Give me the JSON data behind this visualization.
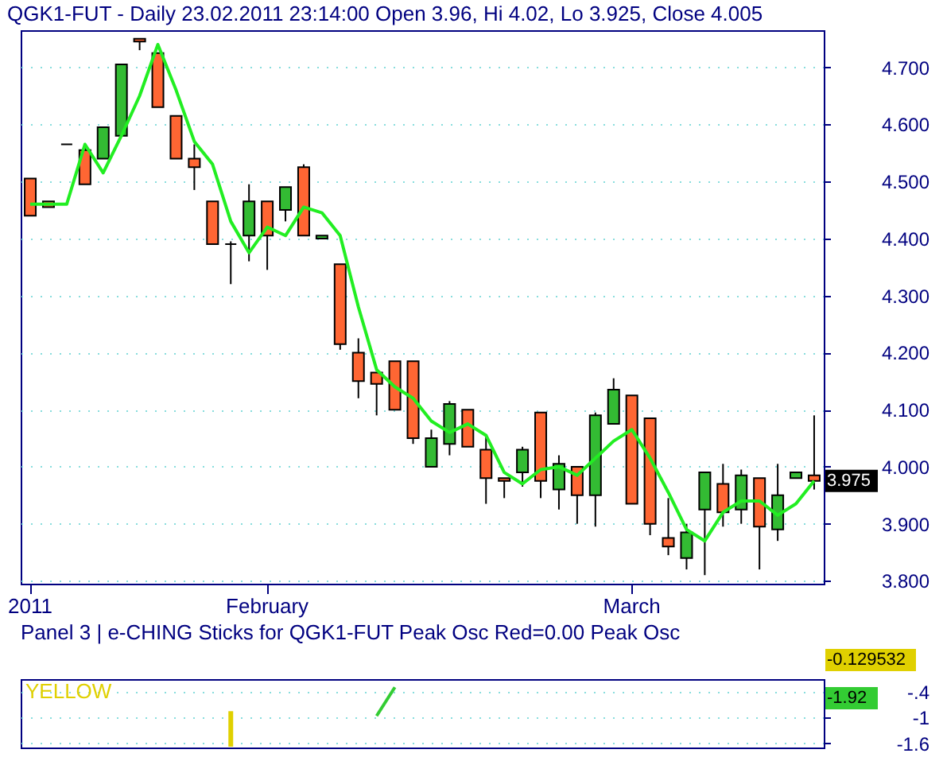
{
  "chart_data": [
    {
      "type": "candlestick",
      "title": "QGK1-FUT - Daily 23.02.2011 23:14:00 Open 3.96, Hi 4.02, Lo 3.925, Close 4.005",
      "categories": [
        "2011",
        null,
        null,
        null,
        null,
        null,
        null,
        null,
        null,
        null,
        null,
        null,
        null,
        "February",
        null,
        null,
        null,
        null,
        null,
        null,
        null,
        null,
        null,
        null,
        null,
        null,
        null,
        null,
        null,
        null,
        null,
        null,
        null,
        "March",
        null,
        null,
        null,
        null,
        null,
        null,
        null,
        null,
        null,
        null
      ],
      "ohlc": [
        [
          4.505,
          4.505,
          4.44,
          4.44
        ],
        [
          4.465,
          4.465,
          4.455,
          4.455
        ],
        [
          4.565,
          4.565,
          4.565,
          4.565
        ],
        [
          4.555,
          4.565,
          4.495,
          4.495
        ],
        [
          4.54,
          4.595,
          4.54,
          4.595
        ],
        [
          4.58,
          4.705,
          4.58,
          4.705
        ],
        [
          4.75,
          4.75,
          4.73,
          4.745
        ],
        [
          4.725,
          4.725,
          4.63,
          4.63
        ],
        [
          4.615,
          4.615,
          4.54,
          4.54
        ],
        [
          4.54,
          4.565,
          4.485,
          4.525
        ],
        [
          4.465,
          4.465,
          4.39,
          4.39
        ],
        [
          4.39,
          4.395,
          4.32,
          4.39
        ],
        [
          4.405,
          4.495,
          4.36,
          4.465
        ],
        [
          4.465,
          4.465,
          4.345,
          4.405
        ],
        [
          4.45,
          4.49,
          4.43,
          4.49
        ],
        [
          4.525,
          4.53,
          4.405,
          4.405
        ],
        [
          4.4,
          4.405,
          4.4,
          4.405
        ],
        [
          4.355,
          4.355,
          4.205,
          4.215
        ],
        [
          4.2,
          4.225,
          4.12,
          4.15
        ],
        [
          4.165,
          4.165,
          4.09,
          4.145
        ],
        [
          4.185,
          4.185,
          4.1,
          4.1
        ],
        [
          4.185,
          4.185,
          4.04,
          4.05
        ],
        [
          4.0,
          4.065,
          4.0,
          4.05
        ],
        [
          4.04,
          4.115,
          4.02,
          4.11
        ],
        [
          4.1,
          4.1,
          4.035,
          4.035
        ],
        [
          4.03,
          4.055,
          3.935,
          3.98
        ],
        [
          3.98,
          3.98,
          3.945,
          3.975
        ],
        [
          3.99,
          4.035,
          3.965,
          4.03
        ],
        [
          4.095,
          4.095,
          3.945,
          3.975
        ],
        [
          3.96,
          4.02,
          3.925,
          4.005
        ],
        [
          4.0,
          4.0,
          3.9,
          3.95
        ],
        [
          3.95,
          4.095,
          3.895,
          4.09
        ],
        [
          4.075,
          4.155,
          4.075,
          4.135
        ],
        [
          4.125,
          4.125,
          3.935,
          3.935
        ],
        [
          4.085,
          4.085,
          3.88,
          3.9
        ],
        [
          3.875,
          3.945,
          3.845,
          3.86
        ],
        [
          3.84,
          3.9,
          3.82,
          3.885
        ],
        [
          3.925,
          3.99,
          3.81,
          3.99
        ],
        [
          3.97,
          4.005,
          3.895,
          3.92
        ],
        [
          3.925,
          3.995,
          3.9,
          3.985
        ],
        [
          3.98,
          3.98,
          3.82,
          3.895
        ],
        [
          3.89,
          4.005,
          3.87,
          3.95
        ],
        [
          3.98,
          3.99,
          3.98,
          3.99
        ],
        [
          3.985,
          4.09,
          3.96,
          3.975
        ]
      ],
      "colors": [
        "#ff6633",
        "#ff6633",
        "#000000",
        "#ff6633",
        "#33bb33",
        "#33bb33",
        "#ff6633",
        "#ff6633",
        "#ff6633",
        "#ff6633",
        "#ff6633",
        "#000000",
        "#33bb33",
        "#ff6633",
        "#33bb33",
        "#ff6633",
        "#33bb33",
        "#ff6633",
        "#ff6633",
        "#ff6633",
        "#ff6633",
        "#ff6633",
        "#33bb33",
        "#33bb33",
        "#ff6633",
        "#ff6633",
        "#ff6633",
        "#33bb33",
        "#ff6633",
        "#33bb33",
        "#ff6633",
        "#33bb33",
        "#33bb33",
        "#ff6633",
        "#ff6633",
        "#ff6633",
        "#33bb33",
        "#33bb33",
        "#ff6633",
        "#33bb33",
        "#ff6633",
        "#33bb33",
        "#33bb33",
        "#ff6633"
      ],
      "series": [
        {
          "type": "line",
          "color": "#22ee22",
          "values": [
            4.46,
            4.46,
            4.46,
            4.565,
            4.515,
            4.58,
            4.65,
            4.74,
            4.66,
            4.57,
            4.53,
            4.43,
            4.375,
            4.42,
            4.405,
            4.455,
            4.445,
            4.405,
            4.28,
            4.17,
            4.14,
            4.12,
            4.08,
            4.06,
            4.075,
            4.055,
            3.99,
            3.97,
            3.995,
            4.0,
            3.985,
            4.015,
            4.045,
            4.065,
            4.015,
            3.955,
            3.89,
            3.87,
            3.92,
            3.94,
            3.94,
            3.915,
            3.935,
            3.975
          ]
        }
      ],
      "ylim": [
        3.795,
        4.765
      ],
      "yticks": [
        {
          "value": 3.8,
          "label": "3.800"
        },
        {
          "value": 3.9,
          "label": "3.900"
        },
        {
          "value": 4.0,
          "label": "4.000"
        },
        {
          "value": 4.1,
          "label": "4.100"
        },
        {
          "value": 4.2,
          "label": "4.200"
        },
        {
          "value": 4.3,
          "label": "4.300"
        },
        {
          "value": 4.4,
          "label": "4.400"
        },
        {
          "value": 4.5,
          "label": "4.500"
        },
        {
          "value": 4.6,
          "label": "4.600"
        },
        {
          "value": 4.7,
          "label": "4.700"
        }
      ],
      "grid": "y",
      "annotations": [
        "3.975"
      ]
    },
    {
      "type": "bar",
      "title": "Panel 3 |  e-CHING Sticks for QGK1-FUT   Peak Osc Red=0.00   Peak Osc",
      "categories": [
        null,
        null,
        null,
        null,
        null,
        null,
        null,
        null,
        null,
        null,
        null,
        null,
        null,
        null,
        null,
        null,
        null,
        null,
        null,
        null,
        null,
        null,
        null,
        null,
        null,
        null,
        null,
        null,
        null,
        null,
        null,
        null,
        null,
        null,
        null,
        null,
        null,
        null,
        null,
        null,
        null,
        null,
        null,
        null
      ],
      "values": [
        null,
        null,
        null,
        null,
        null,
        null,
        null,
        null,
        null,
        null,
        null,
        0.83,
        null,
        null,
        null,
        null,
        null,
        null,
        null,
        null,
        null,
        null,
        null,
        null,
        null,
        null,
        null,
        null,
        null,
        null,
        null,
        null,
        null,
        null,
        null,
        null,
        null,
        null,
        null,
        null,
        null,
        null,
        null,
        null
      ],
      "base": [
        null,
        null,
        null,
        null,
        null,
        null,
        null,
        null,
        null,
        null,
        null,
        -1.68,
        null,
        null,
        null,
        null,
        null,
        null,
        null,
        null,
        null,
        null,
        null,
        null,
        null,
        null,
        null,
        null,
        null,
        null,
        null,
        null,
        null,
        null,
        null,
        null,
        null,
        null,
        null,
        null,
        null,
        null,
        null,
        null
      ],
      "color": "#e0d000",
      "series": [
        {
          "type": "line",
          "color": "#33cc33",
          "values": [
            null,
            null,
            null,
            null,
            null,
            null,
            null,
            null,
            null,
            null,
            null,
            null,
            null,
            null,
            null,
            null,
            null,
            null,
            null,
            -0.96,
            -0.29,
            null,
            null,
            null,
            null,
            null,
            null,
            null,
            null,
            null,
            null,
            null,
            null,
            null,
            null,
            null,
            null,
            null,
            null,
            null,
            null,
            null,
            null,
            null
          ]
        }
      ],
      "ylim": [
        -1.7,
        -0.1
      ],
      "yticks": [
        {
          "value": -0.4,
          "label": "-.4"
        },
        -1,
        -1.6
      ],
      "tick_labels": "y",
      "grid": "y",
      "annotations": [
        "YELLOW",
        "-0.129532",
        "-1.92"
      ]
    }
  ]
}
